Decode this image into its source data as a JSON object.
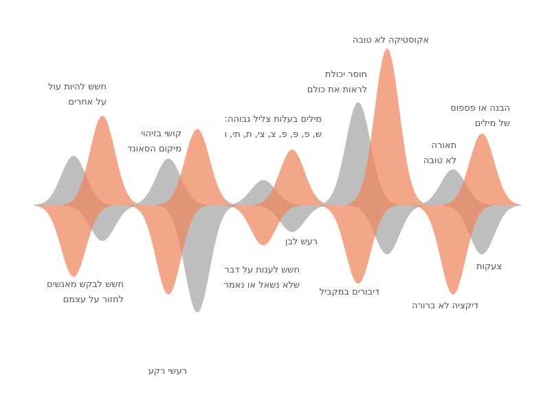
{
  "colors": {
    "orange": "#F0855A",
    "gray": "#BEBEBE",
    "overlap": "#E39B93",
    "text": "#555555"
  },
  "groups": [
    {
      "gray_peak": 0.55,
      "orange_peak": 1.0,
      "orange_trough": 0.8,
      "gray_trough": 0.4,
      "label_above": [
        "חשש להיות עול",
        "על אחרים"
      ],
      "label_below": [
        "חשש לבקש מאנשים",
        "לחזור על עצמם"
      ]
    },
    {
      "gray_peak": 0.52,
      "orange_peak": 0.85,
      "orange_trough": 1.0,
      "gray_trough": 1.2,
      "label_above": [
        "קושי בזיהוי",
        "מיקום הסאונד"
      ],
      "label_below": [
        "רעשי רקע"
      ]
    },
    {
      "gray_peak": 0.28,
      "orange_peak": 0.62,
      "orange_trough": 0.45,
      "gray_trough": 0.3,
      "label_above": [
        "מילים בעלות צליל גבוהה:",
        "ש, פ, פּ, פ, צ, צי, ת, תי, ו"
      ],
      "label_below": [
        "חשש לענות על דבר",
        "שלא נשאל או נאמר"
      ],
      "label_side": [
        "רעש לבן"
      ]
    },
    {
      "gray_peak": 1.15,
      "orange_peak": 1.75,
      "orange_trough": 0.88,
      "gray_trough": 0.55,
      "label_above": [
        "חוסר יכולת",
        "לראות את כולם"
      ],
      "label_top": [
        "אקוסטיקה לא טובה"
      ],
      "label_below": [
        "דיבורים במקביל"
      ]
    },
    {
      "gray_peak": 0.4,
      "orange_peak": 0.8,
      "orange_trough": 1.0,
      "gray_trough": 0.55,
      "label_above": [
        "תאורה",
        "לא טובה"
      ],
      "label_top": [
        "הבנה או פספוס",
        "של מילים"
      ],
      "label_below": [
        "דיקציה לא ברורה"
      ],
      "label_side": [
        "צעקות"
      ]
    }
  ]
}
